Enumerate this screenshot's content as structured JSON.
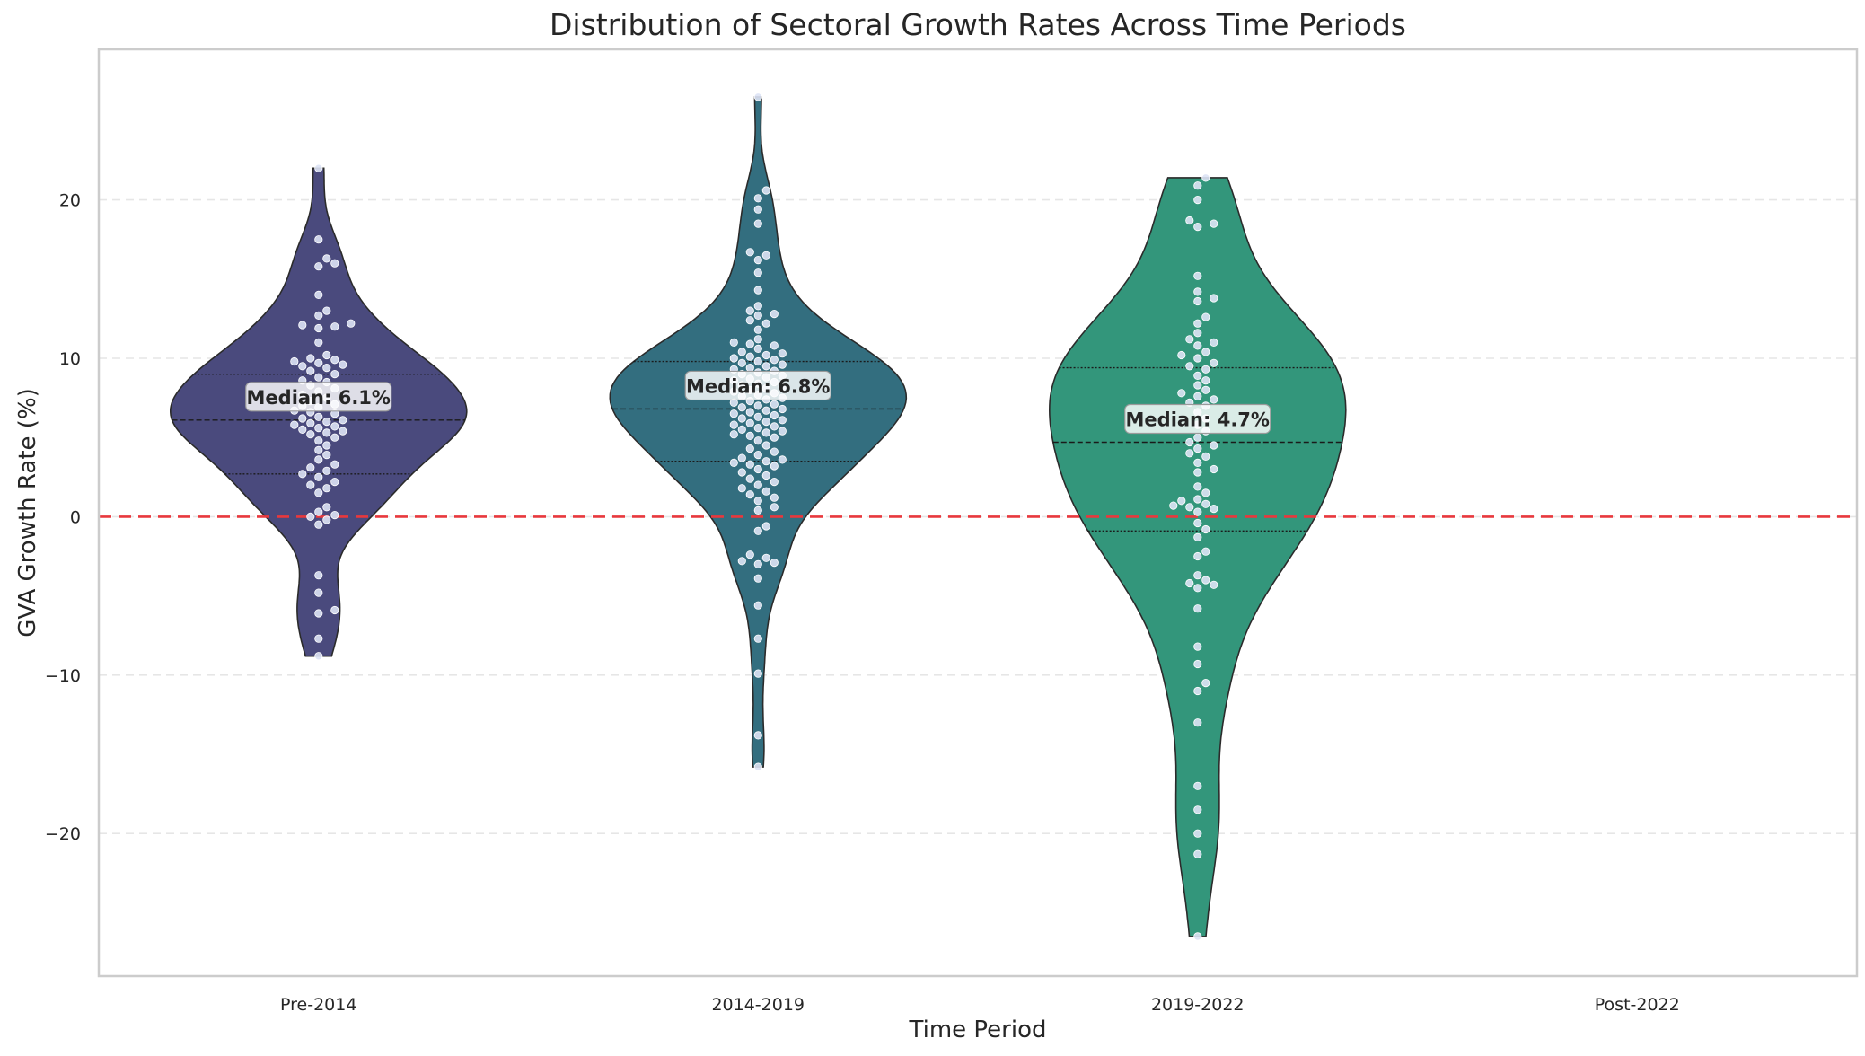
{
  "chart_data": {
    "type": "violin",
    "title": "Distribution of Sectoral Growth Rates Across Time Periods",
    "xlabel": "Time Period",
    "ylabel": "GVA Growth Rate (%)",
    "ylim": [
      -29,
      29.5
    ],
    "yticks": [
      -20,
      -10,
      0,
      10,
      20
    ],
    "ytick_labels": [
      "−20",
      "−10",
      "0",
      "10",
      "20"
    ],
    "grid": "horizontal dashed",
    "reference_line": {
      "y": 0,
      "color": "#e8383d",
      "style": "dashed"
    },
    "categories": [
      "Pre-2014",
      "2014-2019",
      "2019-2022",
      "Post-2022"
    ],
    "colors": {
      "Pre-2014": "#4a4a7d",
      "2014-2019": "#336e7f",
      "2019-2022": "#33967b"
    },
    "series": [
      {
        "category": "Pre-2014",
        "median": 6.1,
        "q1": 2.7,
        "q3": 9.0,
        "min": -8.8,
        "max": 22.0,
        "median_label": "Median: 6.1%",
        "points": [
          22.0,
          17.5,
          16.3,
          16.0,
          15.8,
          14.0,
          13.0,
          12.7,
          12.2,
          12.1,
          12.0,
          11.9,
          11.0,
          10.2,
          10.0,
          9.9,
          9.8,
          9.7,
          9.6,
          9.5,
          9.4,
          9.2,
          9.0,
          8.8,
          8.6,
          8.5,
          8.3,
          8.1,
          7.9,
          7.7,
          7.5,
          7.3,
          7.1,
          7.0,
          6.9,
          6.7,
          6.6,
          6.5,
          6.3,
          6.2,
          6.1,
          6.0,
          5.9,
          5.8,
          5.7,
          5.6,
          5.5,
          5.4,
          5.3,
          5.2,
          5.0,
          4.8,
          4.5,
          4.2,
          3.9,
          3.6,
          3.3,
          3.1,
          2.9,
          2.7,
          2.5,
          2.2,
          2.0,
          1.8,
          1.5,
          0.6,
          0.3,
          0.1,
          0.0,
          -0.2,
          -0.5,
          -3.7,
          -4.8,
          -5.9,
          -6.1,
          -7.7,
          -8.8
        ]
      },
      {
        "category": "2014-2019",
        "median": 6.8,
        "q1": 3.5,
        "q3": 9.8,
        "min": -15.8,
        "max": 26.5,
        "median_label": "Median: 6.8%",
        "points": [
          26.5,
          20.6,
          20.1,
          19.4,
          18.5,
          16.7,
          16.5,
          16.2,
          15.4,
          14.3,
          13.3,
          13.0,
          12.8,
          12.7,
          12.4,
          12.2,
          11.8,
          11.2,
          11.0,
          10.9,
          10.8,
          10.6,
          10.4,
          10.3,
          10.2,
          10.1,
          10.0,
          9.9,
          9.8,
          9.7,
          9.6,
          9.5,
          9.4,
          9.3,
          9.2,
          9.1,
          9.0,
          8.9,
          8.8,
          8.7,
          8.6,
          8.5,
          8.4,
          8.3,
          8.2,
          8.1,
          8.0,
          7.9,
          7.8,
          7.7,
          7.6,
          7.5,
          7.4,
          7.3,
          7.2,
          7.1,
          7.0,
          6.9,
          6.8,
          6.7,
          6.6,
          6.5,
          6.4,
          6.3,
          6.2,
          6.1,
          6.0,
          5.9,
          5.8,
          5.7,
          5.6,
          5.5,
          5.4,
          5.3,
          5.2,
          5.1,
          5.0,
          4.8,
          4.5,
          4.3,
          4.1,
          3.9,
          3.7,
          3.6,
          3.5,
          3.4,
          3.3,
          3.2,
          3.0,
          2.8,
          2.6,
          2.4,
          2.2,
          2.0,
          1.8,
          1.6,
          1.4,
          1.2,
          1.0,
          0.6,
          0.4,
          -0.6,
          -0.9,
          -2.4,
          -2.6,
          -2.8,
          -2.9,
          -3.0,
          -3.9,
          -5.6,
          -7.7,
          -9.9,
          -13.8,
          -15.8
        ]
      },
      {
        "category": "2019-2022",
        "median": 4.7,
        "q1": -0.9,
        "q3": 9.4,
        "min": -26.5,
        "max": 21.4,
        "median_label": "Median: 4.7%",
        "points": [
          21.4,
          20.9,
          20.0,
          18.7,
          18.5,
          18.3,
          15.2,
          14.2,
          13.8,
          13.6,
          12.6,
          12.2,
          11.6,
          11.2,
          11.0,
          10.8,
          10.4,
          10.2,
          10.0,
          9.7,
          9.5,
          9.3,
          8.9,
          8.6,
          8.3,
          8.0,
          7.8,
          7.6,
          7.4,
          7.2,
          7.0,
          6.6,
          6.2,
          5.8,
          5.4,
          5.0,
          4.7,
          4.5,
          4.3,
          4.0,
          3.8,
          3.4,
          3.0,
          2.8,
          1.9,
          1.5,
          1.1,
          1.0,
          0.8,
          0.7,
          0.6,
          0.5,
          0.3,
          -0.4,
          -0.8,
          -1.3,
          -2.2,
          -2.5,
          -3.7,
          -4.0,
          -4.2,
          -4.3,
          -4.5,
          -5.8,
          -8.2,
          -9.3,
          -10.5,
          -11.0,
          -13.0,
          -17.0,
          -18.5,
          -20.0,
          -21.3,
          -26.5
        ]
      }
    ]
  }
}
